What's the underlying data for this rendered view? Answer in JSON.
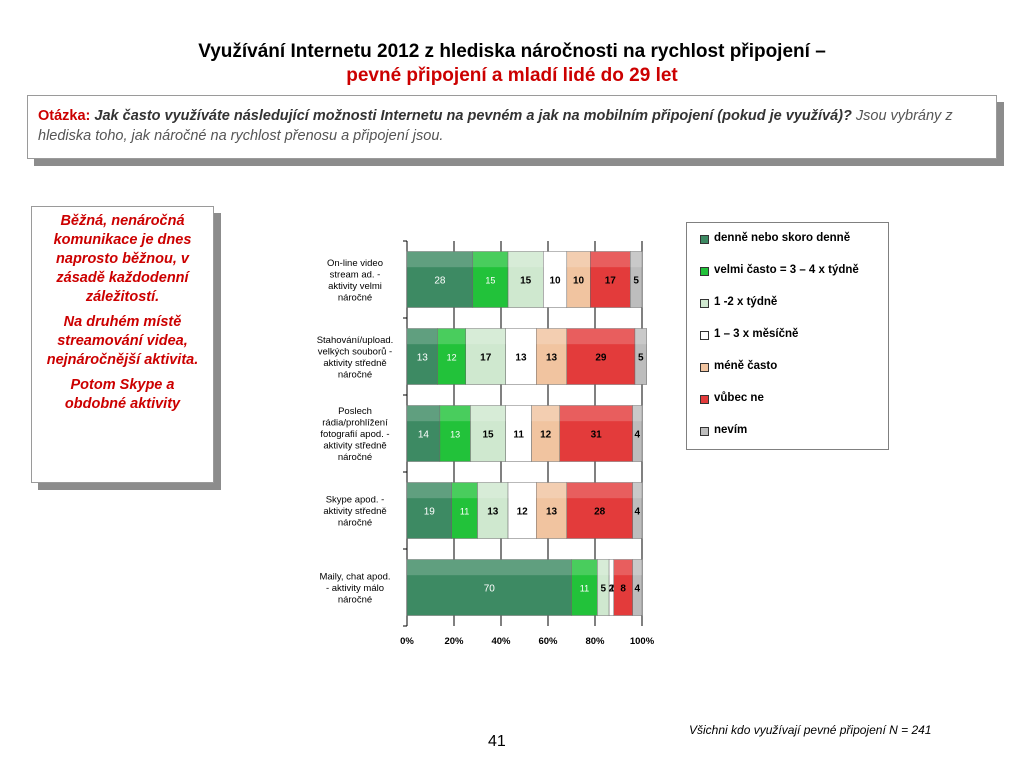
{
  "title": {
    "line1": "Využívání Internetu 2012 z hlediska náročnosti na rychlost připojení –",
    "line2": "pevné připojení a mladí lidé do 29 let"
  },
  "question": {
    "label": "Otázka:",
    "main": "Jak často využíváte následující možnosti Internetu na pevném a jak na mobilním připojení (pokud je využívá)?",
    "sub": "Jsou vybrány z hlediska toho, jak náročné na rychlost přenosu a připojení jsou."
  },
  "note": {
    "p1": "Běžná, nenáročná komunikace je dnes naprosto běžnou, v zásadě každodenní záležitostí.",
    "p2": "Na druhém místě streamování videa, nejnáročnější aktivita.",
    "p3": "Potom Skype a obdobné aktivity"
  },
  "footnote": "Všichni kdo využívají pevné připojení N = 241",
  "page_number": "41",
  "chart_data": {
    "type": "bar",
    "orientation": "horizontal",
    "stacked": "percent",
    "categories": [
      [
        "On-line video",
        "stream ad. -",
        "aktivity velmi",
        "náročné"
      ],
      [
        "Stahování/upload.",
        "velkých souborů -",
        "aktivity středně",
        "náročné"
      ],
      [
        "Poslech",
        "rádia/prohlížení",
        "fotografií apod. -",
        "aktivity středně",
        "náročné"
      ],
      [
        "Skype apod. -",
        "aktivity středně",
        "náročné"
      ],
      [
        "Maily, chat apod.",
        "- aktivity málo",
        "náročné"
      ]
    ],
    "series": [
      {
        "name": "denně nebo skoro denně",
        "color": "#3d8a63",
        "values": [
          28,
          13,
          14,
          19,
          70
        ]
      },
      {
        "name": "velmi často = 3 – 4 x týdně",
        "color": "#22c23a",
        "values": [
          15,
          12,
          13,
          11,
          11
        ]
      },
      {
        "name": "1 -2 x týdně",
        "color": "#cfe8cf",
        "values": [
          15,
          17,
          15,
          13,
          5
        ]
      },
      {
        "name": "1 – 3 x měsíčně",
        "color": "#ffffff",
        "values": [
          10,
          13,
          11,
          12,
          2
        ]
      },
      {
        "name": "méně často",
        "color": "#f1c4a0",
        "values": [
          10,
          13,
          12,
          13,
          0
        ]
      },
      {
        "name": "vůbec ne",
        "color": "#e33b3b",
        "values": [
          17,
          29,
          31,
          28,
          8
        ]
      },
      {
        "name": "nevím",
        "color": "#bdbdbd",
        "values": [
          5,
          5,
          4,
          4,
          4
        ]
      }
    ],
    "label_colors": [
      "#ffffff",
      "#ffffff",
      "#000000",
      "#000000",
      "#000000",
      "#000000",
      "#000000"
    ],
    "xlim": [
      0,
      100
    ],
    "x_ticks": [
      "0%",
      "20%",
      "40%",
      "60%",
      "80%",
      "100%"
    ],
    "grid": true,
    "legend_position": "right"
  }
}
